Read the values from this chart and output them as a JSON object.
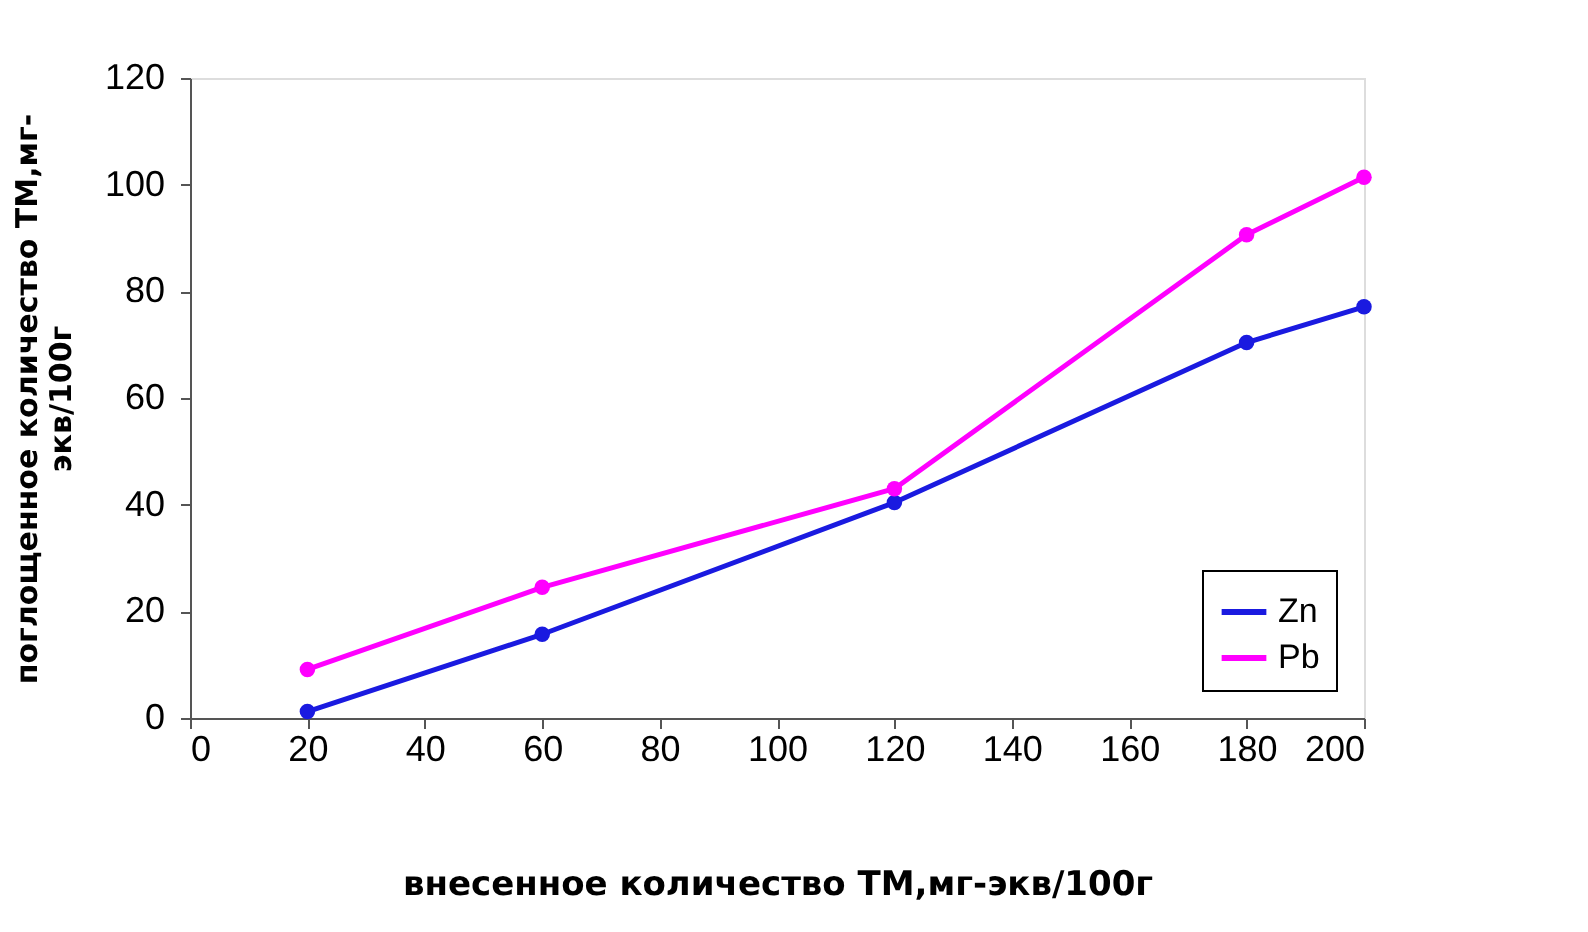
{
  "chart_data": {
    "type": "line",
    "xlabel": "внесенное количество ТМ,мг-экв/100г",
    "ylabel": "поглощенное количество  ТМ,мг-\nэкв/100г",
    "x": [
      20,
      60,
      120,
      180,
      200
    ],
    "series": [
      {
        "name": "Zn",
        "color": "#1a1ae0",
        "values": [
          1.2,
          15.7,
          40.4,
          70.4,
          77.1
        ]
      },
      {
        "name": "Pb",
        "color": "#ff00ff",
        "values": [
          9.1,
          24.5,
          43,
          90.6,
          101.4
        ]
      }
    ],
    "xlim": [
      0,
      200
    ],
    "xticks": [
      0,
      20,
      40,
      60,
      80,
      100,
      120,
      140,
      160,
      180,
      200
    ],
    "ylim": [
      0,
      120
    ],
    "yticks": [
      0,
      20,
      40,
      60,
      80,
      100,
      120
    ],
    "grid": false,
    "legend": "bottom right",
    "marker": "circle",
    "line_style": "solid"
  }
}
